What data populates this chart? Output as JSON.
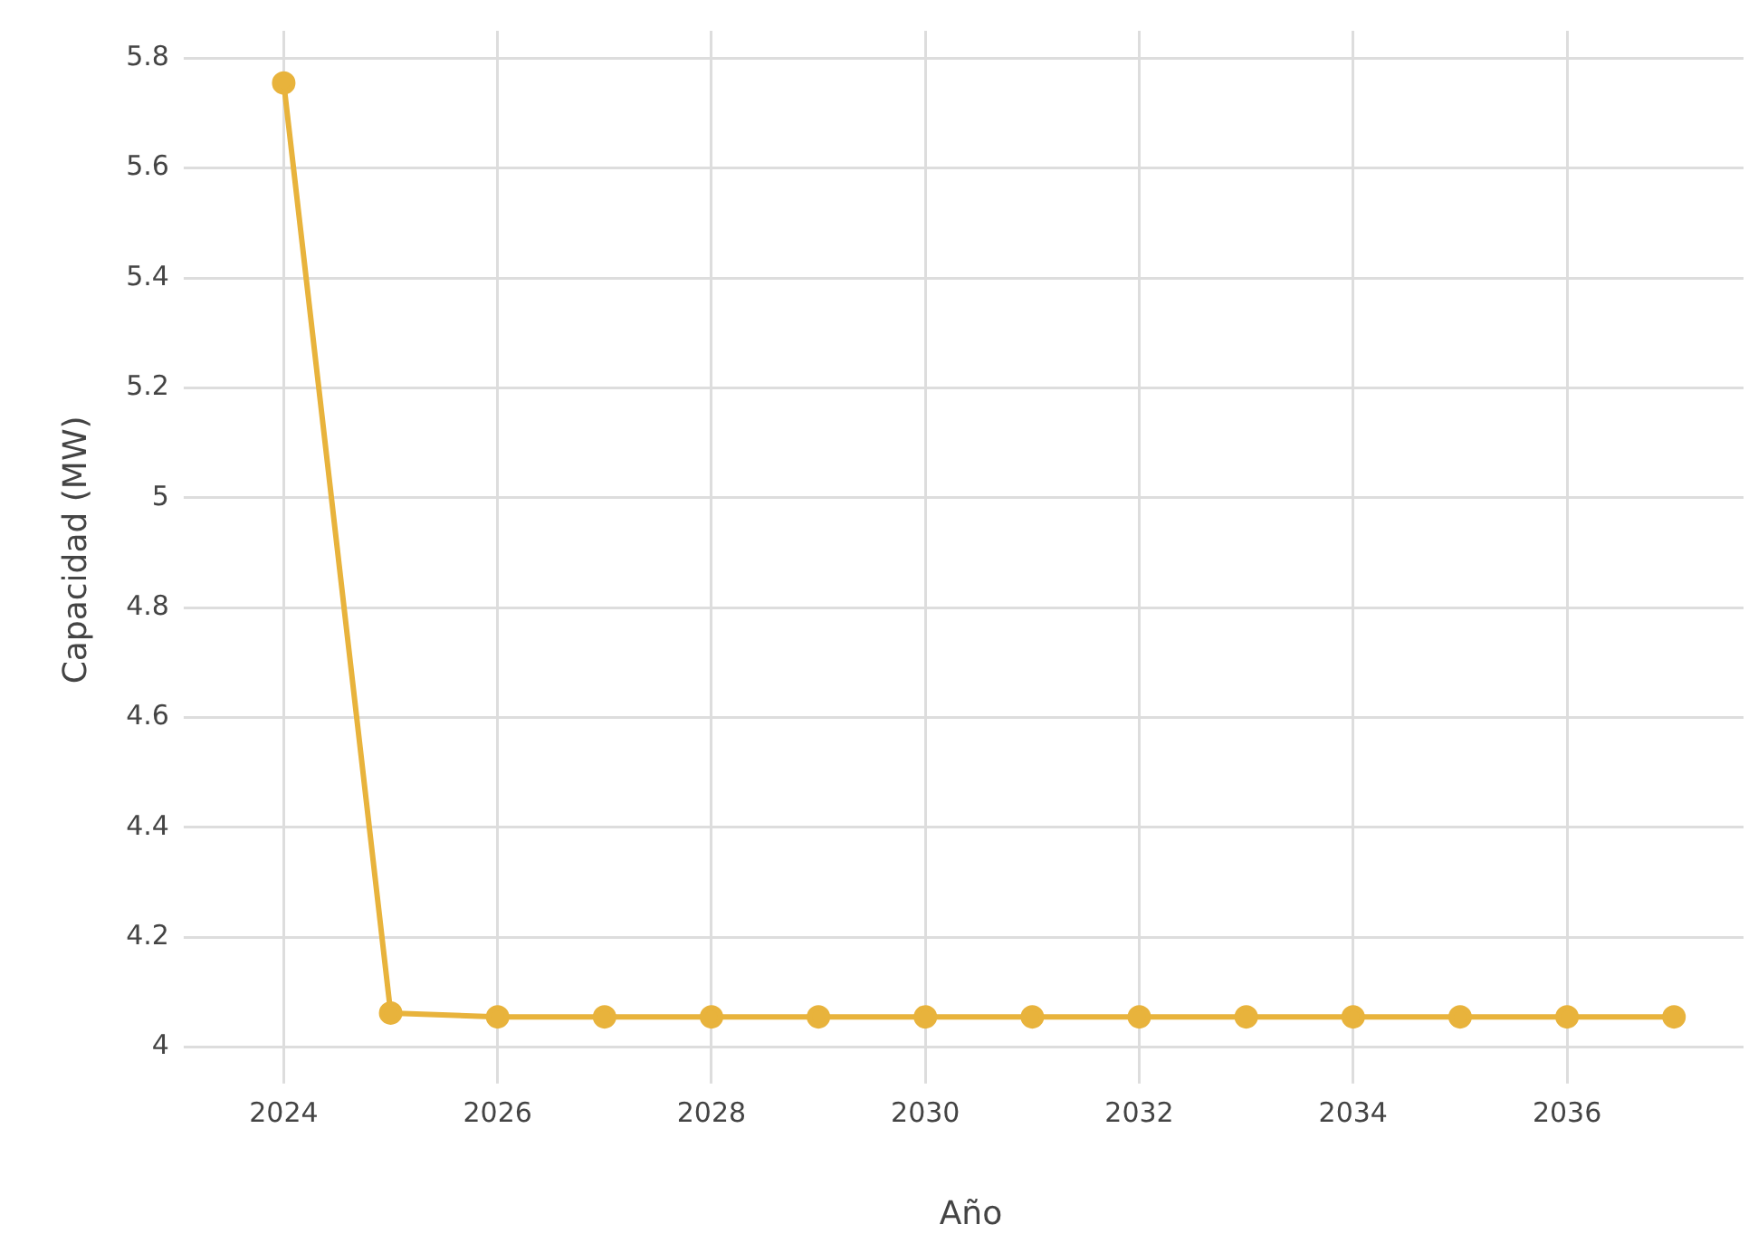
{
  "chart_data": {
    "type": "line",
    "xlabel": "Año",
    "ylabel": "Capacidad (MW)",
    "x": [
      2024,
      2025,
      2026,
      2027,
      2028,
      2029,
      2030,
      2031,
      2032,
      2033,
      2034,
      2035,
      2036,
      2037
    ],
    "series": [
      {
        "color": "#e8b33c",
        "values": [
          5.755,
          4.062,
          4.055,
          4.055,
          4.055,
          4.055,
          4.055,
          4.055,
          4.055,
          4.055,
          4.055,
          4.055,
          4.055,
          4.055
        ]
      }
    ],
    "xlim": [
      2023.2,
      2037.65
    ],
    "xticks": [
      2024,
      2026,
      2028,
      2030,
      2032,
      2034,
      2036
    ],
    "ylim": [
      3.96,
      5.85
    ],
    "yticks": [
      4,
      4.2,
      4.4,
      4.6,
      4.8,
      5,
      5.2,
      5.4,
      5.6,
      5.8
    ],
    "grid": true,
    "legend": false,
    "marker": "circle",
    "line_style": "solid"
  }
}
